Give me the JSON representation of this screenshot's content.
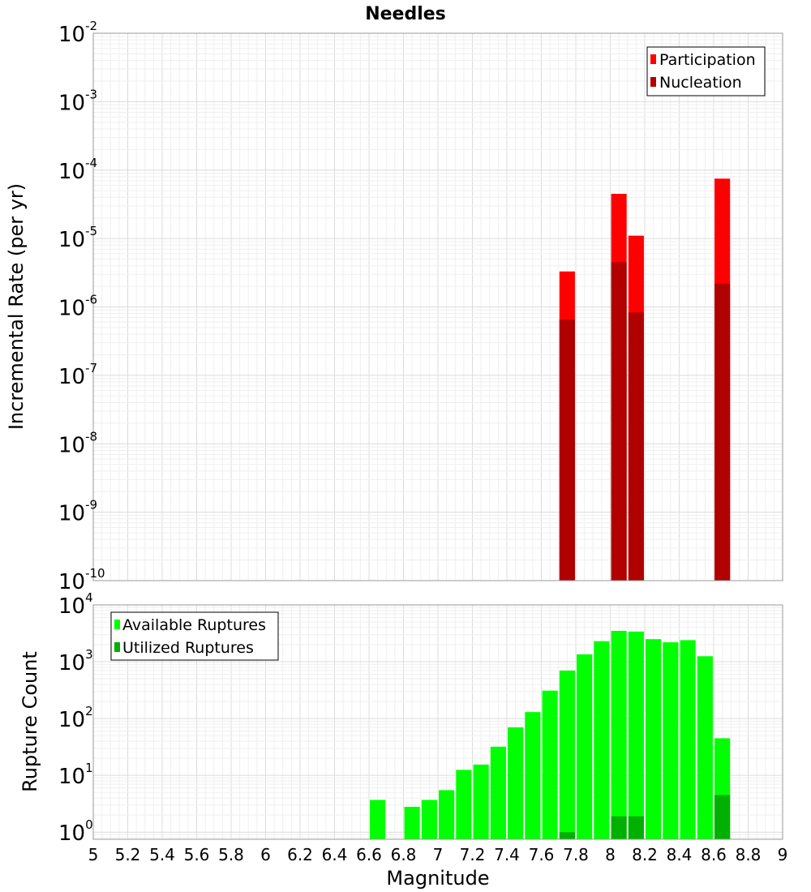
{
  "chart_data": [
    {
      "type": "bar",
      "panel": "top",
      "title": "Needles",
      "ylabel": "Incremental Rate (per yr)",
      "y_scale": "log",
      "ylim": [
        1e-10,
        0.01
      ],
      "xlim": [
        5,
        9
      ],
      "bar_width": 0.09,
      "grid": true,
      "legend_position": "top-right",
      "y_ticks": [
        {
          "base": "10",
          "exp": "-2"
        },
        {
          "base": "10",
          "exp": "-3"
        },
        {
          "base": "10",
          "exp": "-4"
        },
        {
          "base": "10",
          "exp": "-5"
        },
        {
          "base": "10",
          "exp": "-6"
        },
        {
          "base": "10",
          "exp": "-7"
        },
        {
          "base": "10",
          "exp": "-8"
        },
        {
          "base": "10",
          "exp": "-9"
        },
        {
          "base": "10",
          "exp": "-10"
        }
      ],
      "series": [
        {
          "name": "Participation",
          "color": "#ff0000",
          "x": [
            7.75,
            8.05,
            8.15,
            8.65
          ],
          "values": [
            3.3e-06,
            4.5e-05,
            1.1e-05,
            7.5e-05
          ]
        },
        {
          "name": "Nucleation",
          "color": "#b00000",
          "x": [
            7.75,
            8.05,
            8.15,
            8.65
          ],
          "values": [
            6.5e-07,
            4.5e-06,
            8.3e-07,
            2.2e-06
          ]
        }
      ]
    },
    {
      "type": "bar",
      "panel": "bottom",
      "ylabel": "Rupture Count",
      "xlabel": "Magnitude",
      "y_scale": "log",
      "ylim": [
        0.75,
        10000
      ],
      "xlim": [
        5,
        9
      ],
      "bar_width": 0.09,
      "grid": true,
      "legend_position": "top-left",
      "y_ticks": [
        {
          "base": "10",
          "exp": "4"
        },
        {
          "base": "10",
          "exp": "3"
        },
        {
          "base": "10",
          "exp": "2"
        },
        {
          "base": "10",
          "exp": "1"
        },
        {
          "base": "10",
          "exp": "0"
        }
      ],
      "x_ticks": [
        "5",
        "5.2",
        "5.4",
        "5.6",
        "5.8",
        "6",
        "6.2",
        "6.4",
        "6.6",
        "6.8",
        "7",
        "7.2",
        "7.4",
        "7.6",
        "7.8",
        "8",
        "8.2",
        "8.4",
        "8.6",
        "8.8",
        "9"
      ],
      "series": [
        {
          "name": "Available Ruptures",
          "color": "#00ff00",
          "x": [
            6.65,
            6.85,
            6.95,
            7.05,
            7.15,
            7.25,
            7.35,
            7.45,
            7.55,
            7.65,
            7.75,
            7.85,
            7.95,
            8.05,
            8.15,
            8.25,
            8.35,
            8.45,
            8.55,
            8.65
          ],
          "values": [
            3.7,
            2.8,
            3.7,
            5.5,
            12.5,
            15.5,
            32,
            70,
            130,
            310,
            700,
            1350,
            2300,
            3500,
            3400,
            2500,
            2200,
            2400,
            1250,
            45
          ]
        },
        {
          "name": "Utilized Ruptures",
          "color": "#00b000",
          "x": [
            7.75,
            8.05,
            8.15,
            8.65
          ],
          "values": [
            1,
            1.9,
            1.9,
            4.5
          ]
        }
      ]
    }
  ]
}
